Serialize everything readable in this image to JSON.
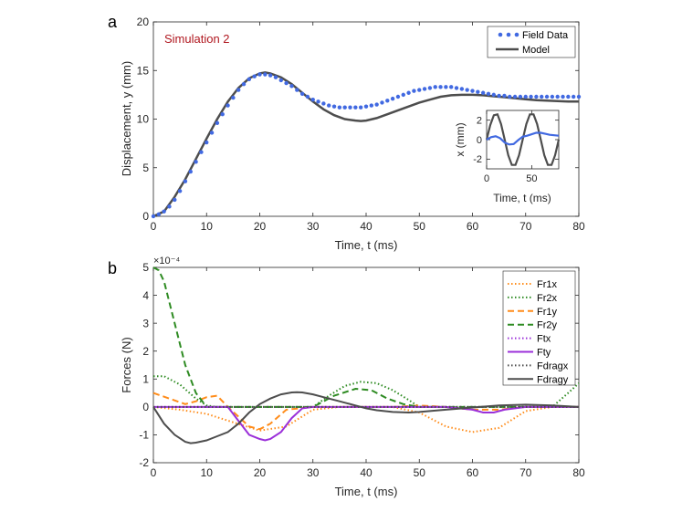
{
  "chart_data": [
    {
      "panel_label": "a",
      "type": "line",
      "title": "Simulation 2",
      "xlabel": "Time, t (ms)",
      "ylabel": "Displacement, y (mm)",
      "xlim": [
        0,
        80
      ],
      "ylim": [
        0,
        20
      ],
      "xticks": [
        "0",
        "10",
        "20",
        "30",
        "40",
        "50",
        "60",
        "70",
        "80"
      ],
      "yticks": [
        "0",
        "5",
        "10",
        "15",
        "20"
      ],
      "legend_position": "top-right",
      "series": [
        {
          "name": "Field Data",
          "style": "markers",
          "color": "#4169E1",
          "x": [
            0,
            1,
            2,
            3,
            4,
            5,
            6,
            7,
            8,
            9,
            10,
            11,
            12,
            13,
            14,
            15,
            16,
            17,
            18,
            19,
            20,
            21,
            22,
            23,
            24,
            25,
            26,
            27,
            28,
            29,
            30,
            31,
            32,
            33,
            34,
            35,
            36,
            37,
            38,
            39,
            40,
            41,
            42,
            43,
            44,
            45,
            46,
            47,
            48,
            49,
            50,
            51,
            52,
            53,
            54,
            55,
            56,
            57,
            58,
            59,
            60,
            61,
            62,
            63,
            64,
            65,
            66,
            67,
            68,
            69,
            70,
            71,
            72,
            73,
            74,
            75,
            76,
            77,
            78,
            79,
            80
          ],
          "y": [
            0.0,
            0.2,
            0.5,
            1.0,
            1.7,
            2.6,
            3.6,
            4.6,
            5.6,
            6.6,
            7.6,
            8.6,
            9.6,
            10.5,
            11.4,
            12.2,
            13.0,
            13.6,
            14.1,
            14.4,
            14.6,
            14.6,
            14.5,
            14.3,
            14.0,
            13.7,
            13.4,
            13.0,
            12.6,
            12.3,
            12.0,
            11.8,
            11.6,
            11.4,
            11.3,
            11.2,
            11.2,
            11.2,
            11.2,
            11.2,
            11.3,
            11.4,
            11.5,
            11.7,
            11.9,
            12.1,
            12.3,
            12.5,
            12.7,
            12.9,
            13.0,
            13.1,
            13.2,
            13.3,
            13.3,
            13.3,
            13.3,
            13.2,
            13.1,
            13.0,
            12.9,
            12.8,
            12.7,
            12.6,
            12.5,
            12.4,
            12.4,
            12.3,
            12.3,
            12.3,
            12.3,
            12.3,
            12.3,
            12.3,
            12.3,
            12.3,
            12.3,
            12.3,
            12.3,
            12.3,
            12.3
          ]
        },
        {
          "name": "Model",
          "style": "line",
          "color": "#4d4d4d",
          "x": [
            0,
            2,
            4,
            6,
            8,
            10,
            12,
            14,
            16,
            18,
            20,
            21,
            22,
            24,
            26,
            28,
            30,
            32,
            34,
            36,
            38,
            39,
            40,
            42,
            44,
            46,
            48,
            50,
            52,
            54,
            56,
            58,
            60,
            62,
            64,
            66,
            68,
            70,
            72,
            74,
            76,
            78,
            80
          ],
          "y": [
            0.0,
            0.5,
            2.0,
            3.8,
            5.9,
            8.0,
            10.0,
            11.8,
            13.2,
            14.2,
            14.7,
            14.8,
            14.7,
            14.3,
            13.6,
            12.7,
            11.8,
            11.0,
            10.4,
            10.0,
            9.85,
            9.8,
            9.85,
            10.1,
            10.5,
            10.9,
            11.3,
            11.7,
            12.0,
            12.3,
            12.45,
            12.5,
            12.5,
            12.45,
            12.35,
            12.25,
            12.15,
            12.05,
            11.95,
            11.9,
            11.85,
            11.8,
            11.8
          ]
        }
      ]
    },
    {
      "panel_label": "inset",
      "type": "line",
      "title": "",
      "xlabel": "Time, t (ms)",
      "ylabel": "x (mm)",
      "xlim": [
        0,
        80
      ],
      "ylim": [
        -3,
        3
      ],
      "xticks": [
        "0",
        "50"
      ],
      "yticks": [
        "-2",
        "0",
        "2"
      ],
      "series": [
        {
          "name": "Field Data",
          "color": "#4169E1",
          "x": [
            0,
            5,
            10,
            15,
            20,
            25,
            30,
            35,
            40,
            45,
            50,
            55,
            60,
            65,
            70,
            75,
            80
          ],
          "y": [
            0.0,
            0.25,
            0.35,
            0.15,
            -0.3,
            -0.5,
            -0.45,
            -0.05,
            0.3,
            0.4,
            0.55,
            0.7,
            0.7,
            0.6,
            0.5,
            0.45,
            0.4
          ]
        },
        {
          "name": "Model",
          "color": "#4d4d4d",
          "x": [
            0,
            4,
            8,
            12,
            16,
            20,
            24,
            28,
            32,
            36,
            40,
            44,
            48,
            52,
            56,
            60,
            64,
            68,
            72,
            76,
            80
          ],
          "y": [
            0.0,
            1.5,
            2.5,
            2.6,
            1.6,
            0.0,
            -1.6,
            -2.6,
            -2.6,
            -1.6,
            0.0,
            1.6,
            2.6,
            2.6,
            1.6,
            0.0,
            -1.6,
            -2.6,
            -2.6,
            -1.6,
            0.0
          ]
        }
      ]
    },
    {
      "panel_label": "b",
      "type": "line",
      "title": "",
      "xlabel": "Time, t (ms)",
      "ylabel": "Forces (N)",
      "exponent": "×10⁻⁴",
      "xlim": [
        0,
        80
      ],
      "ylim": [
        -2,
        5
      ],
      "xticks": [
        "0",
        "10",
        "20",
        "30",
        "40",
        "50",
        "60",
        "70",
        "80"
      ],
      "yticks": [
        "-2",
        "-1",
        "0",
        "1",
        "2",
        "3",
        "4",
        "5"
      ],
      "legend_position": "top-right",
      "series": [
        {
          "name": "Fr1x",
          "color": "#FF8C1A",
          "dash": "dotted",
          "x": [
            0,
            5,
            10,
            15,
            20,
            25,
            30,
            35,
            40,
            45,
            50,
            55,
            60,
            65,
            70,
            75,
            80
          ],
          "y": [
            0.0,
            -0.1,
            -0.25,
            -0.55,
            -0.85,
            -0.7,
            -0.1,
            0.0,
            0.0,
            0.0,
            -0.2,
            -0.7,
            -0.9,
            -0.75,
            -0.15,
            0.0,
            0.0
          ]
        },
        {
          "name": "Fr2x",
          "color": "#2E8B22",
          "dash": "dotted",
          "x": [
            0,
            2,
            5,
            8,
            10,
            12,
            15,
            20,
            25,
            30,
            33,
            36,
            39,
            42,
            45,
            48,
            50,
            55,
            60,
            65,
            70,
            75,
            78,
            80
          ],
          "y": [
            1.1,
            1.1,
            0.8,
            0.3,
            0.05,
            0.0,
            0.0,
            0.0,
            0.0,
            0.0,
            0.4,
            0.75,
            0.9,
            0.85,
            0.6,
            0.25,
            0.0,
            0.0,
            0.0,
            0.0,
            0.0,
            0.0,
            0.5,
            0.85
          ]
        },
        {
          "name": "Fr1y",
          "color": "#FF8C1A",
          "dash": "dashed",
          "x": [
            0,
            3,
            6,
            8,
            10,
            12,
            14,
            18,
            20,
            22,
            25,
            30,
            35,
            40,
            45,
            50,
            55,
            60,
            65,
            70,
            75,
            80
          ],
          "y": [
            0.5,
            0.3,
            0.1,
            0.2,
            0.35,
            0.4,
            0.0,
            -0.7,
            -0.8,
            -0.6,
            -0.1,
            0.0,
            0.0,
            0.0,
            0.0,
            0.05,
            0.0,
            -0.1,
            -0.1,
            0.0,
            0.0,
            0.0
          ]
        },
        {
          "name": "Fr2y",
          "color": "#2E8B22",
          "dash": "dashed",
          "x": [
            0,
            1,
            2,
            4,
            6,
            8,
            10,
            15,
            20,
            30,
            34,
            38,
            41,
            44,
            47,
            50,
            55,
            60,
            65,
            70,
            75,
            80
          ],
          "y": [
            5.0,
            4.9,
            4.5,
            3.0,
            1.5,
            0.5,
            0.0,
            0.0,
            0.0,
            0.0,
            0.4,
            0.65,
            0.6,
            0.3,
            0.1,
            0.0,
            0.0,
            0.0,
            0.0,
            0.0,
            0.0,
            0.0
          ]
        },
        {
          "name": "Ftx",
          "color": "#9B30D9",
          "dash": "dotted",
          "x": [
            0,
            20,
            40,
            60,
            80
          ],
          "y": [
            0.0,
            0.0,
            0.0,
            0.0,
            0.0
          ]
        },
        {
          "name": "Fty",
          "color": "#9B30D9",
          "dash": "solid",
          "x": [
            0,
            10,
            14,
            16,
            18,
            20,
            21,
            22,
            24,
            26,
            28,
            30,
            40,
            50,
            55,
            60,
            62,
            64,
            66,
            70,
            80
          ],
          "y": [
            0.0,
            0.0,
            0.0,
            -0.5,
            -1.0,
            -1.15,
            -1.2,
            -1.15,
            -0.9,
            -0.4,
            -0.05,
            0.0,
            0.0,
            0.0,
            0.0,
            -0.1,
            -0.2,
            -0.2,
            -0.1,
            0.0,
            0.0
          ]
        },
        {
          "name": "Fdragx",
          "color": "#4d4d4d",
          "dash": "dotted",
          "x": [
            0,
            20,
            40,
            60,
            80
          ],
          "y": [
            0.0,
            0.0,
            0.0,
            0.0,
            0.0
          ]
        },
        {
          "name": "Fdragy",
          "color": "#4d4d4d",
          "dash": "solid",
          "x": [
            0,
            2,
            4,
            6,
            7,
            8,
            10,
            12,
            14,
            16,
            18,
            20,
            22,
            24,
            26,
            27,
            28,
            30,
            32,
            35,
            38,
            40,
            42,
            45,
            48,
            50,
            55,
            60,
            65,
            70,
            75,
            80
          ],
          "y": [
            0.0,
            -0.6,
            -1.0,
            -1.25,
            -1.3,
            -1.28,
            -1.2,
            -1.05,
            -0.9,
            -0.6,
            -0.2,
            0.1,
            0.3,
            0.45,
            0.52,
            0.53,
            0.52,
            0.45,
            0.35,
            0.2,
            0.05,
            -0.05,
            -0.12,
            -0.18,
            -0.2,
            -0.18,
            -0.1,
            -0.02,
            0.05,
            0.08,
            0.05,
            0.0
          ]
        }
      ]
    }
  ]
}
